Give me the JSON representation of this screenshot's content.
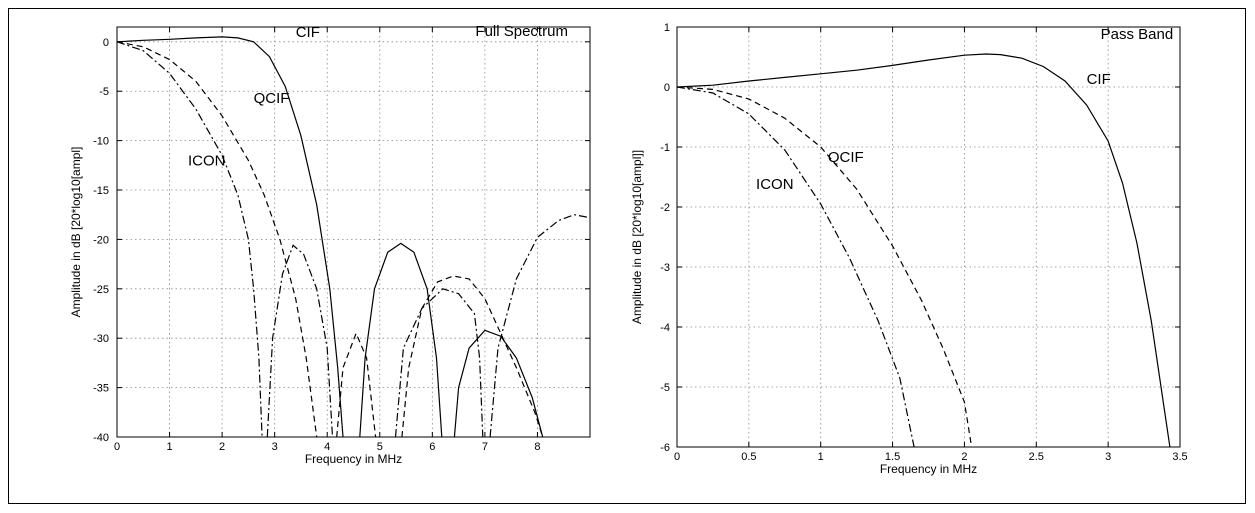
{
  "chart_data": [
    {
      "type": "line",
      "title": "Full Spectrum",
      "xlabel": "Frequency in MHz",
      "ylabel": "Amplitude in dB [20*log10[ampl]",
      "xlim": [
        0,
        9
      ],
      "ylim": [
        -40,
        1.5
      ],
      "xticks": [
        0,
        1,
        2,
        3,
        4,
        5,
        6,
        7,
        8
      ],
      "yticks": [
        0,
        -5,
        -10,
        -15,
        -20,
        -25,
        -30,
        -35,
        -40
      ],
      "grid": true,
      "series": [
        {
          "name": "CIF",
          "style": "solid",
          "segments": [
            [
              [
                0,
                0
              ],
              [
                0.5,
                0.15
              ],
              [
                1,
                0.25
              ],
              [
                1.5,
                0.4
              ],
              [
                2,
                0.5
              ],
              [
                2.3,
                0.4
              ],
              [
                2.6,
                0
              ],
              [
                2.9,
                -1.5
              ],
              [
                3.2,
                -4.5
              ],
              [
                3.5,
                -9.5
              ],
              [
                3.8,
                -16.5
              ],
              [
                4.05,
                -25
              ],
              [
                4.2,
                -33
              ],
              [
                4.3,
                -40
              ]
            ],
            [
              [
                4.62,
                -40
              ],
              [
                4.72,
                -32
              ],
              [
                4.9,
                -25
              ],
              [
                5.15,
                -21.3
              ],
              [
                5.4,
                -20.4
              ],
              [
                5.65,
                -21.3
              ],
              [
                5.9,
                -25
              ],
              [
                6.08,
                -32
              ],
              [
                6.18,
                -40
              ]
            ],
            [
              [
                6.42,
                -40
              ],
              [
                6.5,
                -35
              ],
              [
                6.7,
                -31
              ],
              [
                7.0,
                -29.2
              ],
              [
                7.3,
                -29.8
              ],
              [
                7.6,
                -32
              ],
              [
                7.9,
                -36
              ],
              [
                8.1,
                -40
              ]
            ]
          ]
        },
        {
          "name": "QCIF",
          "style": "dashed",
          "segments": [
            [
              [
                0,
                0
              ],
              [
                0.5,
                -0.5
              ],
              [
                1,
                -1.8
              ],
              [
                1.5,
                -4
              ],
              [
                2,
                -7.5
              ],
              [
                2.5,
                -12
              ],
              [
                2.8,
                -15.5
              ],
              [
                3.1,
                -20
              ],
              [
                3.4,
                -26
              ],
              [
                3.6,
                -32
              ],
              [
                3.8,
                -40
              ]
            ],
            [
              [
                4.18,
                -40
              ],
              [
                4.3,
                -33
              ],
              [
                4.55,
                -29.5
              ],
              [
                4.75,
                -32
              ],
              [
                4.92,
                -40
              ]
            ],
            [
              [
                5.42,
                -40
              ],
              [
                5.55,
                -33
              ],
              [
                5.8,
                -27
              ],
              [
                6.1,
                -24.3
              ],
              [
                6.4,
                -23.7
              ],
              [
                6.7,
                -24
              ],
              [
                7.0,
                -26
              ],
              [
                7.3,
                -29.5
              ],
              [
                7.6,
                -33
              ],
              [
                7.95,
                -37.5
              ],
              [
                8.1,
                -40
              ]
            ]
          ]
        },
        {
          "name": "ICON",
          "style": "dashdot",
          "segments": [
            [
              [
                0,
                0
              ],
              [
                0.5,
                -0.9
              ],
              [
                1,
                -3.2
              ],
              [
                1.5,
                -6.8
              ],
              [
                2,
                -11.5
              ],
              [
                2.3,
                -15.5
              ],
              [
                2.5,
                -20
              ],
              [
                2.6,
                -25
              ],
              [
                2.7,
                -32
              ],
              [
                2.76,
                -40
              ]
            ],
            [
              [
                2.86,
                -40
              ],
              [
                2.96,
                -30
              ],
              [
                3.15,
                -23.5
              ],
              [
                3.35,
                -20.6
              ],
              [
                3.55,
                -21.5
              ],
              [
                3.8,
                -25
              ],
              [
                4.0,
                -31
              ],
              [
                4.1,
                -40
              ]
            ],
            [
              [
                5.3,
                -40
              ],
              [
                5.45,
                -31
              ],
              [
                5.8,
                -27
              ],
              [
                6.2,
                -25
              ],
              [
                6.5,
                -25.5
              ],
              [
                6.8,
                -27.5
              ],
              [
                6.9,
                -32
              ],
              [
                6.96,
                -40
              ]
            ],
            [
              [
                7.1,
                -40
              ],
              [
                7.25,
                -31
              ],
              [
                7.6,
                -24
              ],
              [
                8.0,
                -19.8
              ],
              [
                8.4,
                -18.1
              ],
              [
                8.7,
                -17.5
              ],
              [
                9.0,
                -17.8
              ]
            ]
          ]
        }
      ],
      "annotations": [
        {
          "text": "CIF",
          "x": 3.4,
          "y": 0.5
        },
        {
          "text": "QCIF",
          "x": 2.6,
          "y": -6.2
        },
        {
          "text": "ICON",
          "x": 1.35,
          "y": -12.5
        },
        {
          "text": "Full Spectrum",
          "x": 7.7,
          "y": 0.6
        }
      ]
    },
    {
      "type": "line",
      "title": "Pass Band",
      "xlabel": "Frequency in MHz",
      "ylabel": "Amplitude in dB [20*log10[ampl]]",
      "xlim": [
        0,
        3.5
      ],
      "ylim": [
        -6,
        1
      ],
      "xticks": [
        0,
        0.5,
        1,
        1.5,
        2,
        2.5,
        3,
        3.5
      ],
      "yticks": [
        1,
        0,
        -1,
        -2,
        -3,
        -4,
        -5,
        -6
      ],
      "grid": true,
      "series": [
        {
          "name": "CIF",
          "style": "solid",
          "segments": [
            [
              [
                0,
                0
              ],
              [
                0.25,
                0.03
              ],
              [
                0.5,
                0.1
              ],
              [
                0.75,
                0.16
              ],
              [
                1,
                0.22
              ],
              [
                1.25,
                0.28
              ],
              [
                1.5,
                0.36
              ],
              [
                1.75,
                0.45
              ],
              [
                2,
                0.53
              ],
              [
                2.15,
                0.55
              ],
              [
                2.25,
                0.54
              ],
              [
                2.4,
                0.48
              ],
              [
                2.55,
                0.34
              ],
              [
                2.7,
                0.1
              ],
              [
                2.85,
                -0.3
              ],
              [
                3.0,
                -0.9
              ],
              [
                3.1,
                -1.6
              ],
              [
                3.2,
                -2.6
              ],
              [
                3.3,
                -3.9
              ],
              [
                3.38,
                -5.2
              ],
              [
                3.43,
                -6
              ]
            ]
          ]
        },
        {
          "name": "QCIF",
          "style": "dashed",
          "segments": [
            [
              [
                0,
                0
              ],
              [
                0.25,
                -0.04
              ],
              [
                0.5,
                -0.2
              ],
              [
                0.75,
                -0.52
              ],
              [
                1,
                -1.0
              ],
              [
                1.25,
                -1.7
              ],
              [
                1.5,
                -2.65
              ],
              [
                1.7,
                -3.55
              ],
              [
                1.85,
                -4.35
              ],
              [
                2.0,
                -5.25
              ],
              [
                2.05,
                -6
              ]
            ]
          ]
        },
        {
          "name": "ICON",
          "style": "dashdot",
          "segments": [
            [
              [
                0,
                0
              ],
              [
                0.25,
                -0.1
              ],
              [
                0.5,
                -0.45
              ],
              [
                0.75,
                -1.05
              ],
              [
                1,
                -1.95
              ],
              [
                1.2,
                -2.85
              ],
              [
                1.4,
                -3.9
              ],
              [
                1.55,
                -4.85
              ],
              [
                1.65,
                -6
              ]
            ]
          ]
        }
      ],
      "annotations": [
        {
          "text": "CIF",
          "x": 2.85,
          "y": 0.05
        },
        {
          "text": "QCIF",
          "x": 1.05,
          "y": -1.25
        },
        {
          "text": "ICON",
          "x": 0.55,
          "y": -1.7
        },
        {
          "text": "Pass Band",
          "x": 3.2,
          "y": 0.8
        }
      ]
    }
  ]
}
